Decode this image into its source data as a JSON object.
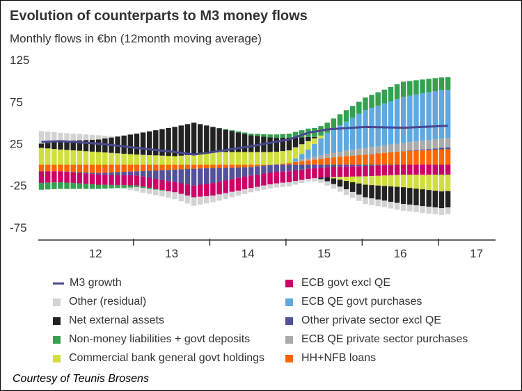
{
  "title": "Evolution of counterparts to M3 money flows",
  "subtitle": "Monthly flows in €bn (12month moving average)",
  "credit": "Courtesy of Teunis Brosens",
  "chart_data": {
    "type": "bar",
    "stacked": true,
    "ylim": [
      -90,
      130
    ],
    "yticks": [
      125,
      75,
      25,
      -25,
      -75
    ],
    "year_labels": [
      {
        "label": "12",
        "x": 2012.5
      },
      {
        "label": "13",
        "x": 2013.5
      },
      {
        "label": "14",
        "x": 2014.5
      },
      {
        "label": "15",
        "x": 2015.5
      },
      {
        "label": "16",
        "x": 2016.5
      },
      {
        "label": "17",
        "x": 2017.5
      }
    ],
    "year_boundaries": [
      2013,
      2014,
      2015,
      2016,
      2017
    ],
    "start": 2011.75,
    "months": 65,
    "anchors": [
      2011.75,
      2012.0,
      2012.5,
      2013.0,
      2013.5,
      2013.75,
      2014.0,
      2014.5,
      2015.0,
      2015.25,
      2015.5,
      2016.0,
      2016.5,
      2017.0,
      2017.4
    ],
    "series": [
      {
        "name": "HH+NFB loans",
        "color": "#ff6600",
        "values": [
          -8,
          -8,
          -10,
          -8,
          -6,
          -5,
          -4,
          -3,
          2,
          5,
          8,
          12,
          16,
          18,
          20
        ]
      },
      {
        "name": "Other private sector excl QE",
        "color": "#525199",
        "values": [
          0,
          0,
          -2,
          -5,
          -15,
          -20,
          -18,
          -10,
          -8,
          -5,
          -3,
          -2,
          0,
          2,
          3
        ]
      },
      {
        "name": "ECB QE private sector purchases",
        "color": "#aaaaaa",
        "values": [
          0,
          0,
          0,
          0,
          0,
          0,
          0,
          0,
          0,
          3,
          5,
          8,
          10,
          11,
          12
        ]
      },
      {
        "name": "ECB QE govt purchases",
        "color": "#5fa8e0",
        "values": [
          0,
          0,
          0,
          0,
          0,
          0,
          0,
          0,
          0,
          10,
          25,
          45,
          55,
          58,
          55
        ]
      },
      {
        "name": "ECB govt excl QE",
        "color": "#cc0066",
        "values": [
          -14,
          -13,
          -12,
          -12,
          -12,
          -14,
          -15,
          -15,
          -13,
          -12,
          -12,
          -12,
          -12,
          -12,
          -12
        ]
      },
      {
        "name": "Commercial bank general govt holdings",
        "color": "#d0df3e",
        "values": [
          20,
          18,
          15,
          12,
          10,
          12,
          15,
          15,
          15,
          10,
          0,
          -10,
          -15,
          -20,
          -18
        ]
      },
      {
        "name": "Net external assets",
        "color": "#222222",
        "values": [
          5,
          10,
          15,
          25,
          35,
          38,
          30,
          20,
          15,
          5,
          -5,
          -15,
          -20,
          -20,
          -18
        ]
      },
      {
        "name": "Non-money liabilities + govt deposits",
        "color": "#33a14f",
        "values": [
          -8,
          -8,
          -5,
          -2,
          0,
          0,
          0,
          2,
          5,
          10,
          12,
          15,
          18,
          15,
          15
        ]
      },
      {
        "name": "Other (residual)",
        "color": "#d3d3d3",
        "values": [
          15,
          10,
          5,
          -5,
          -8,
          -10,
          -8,
          -5,
          -5,
          -3,
          -5,
          -8,
          -8,
          -8,
          -8
        ]
      }
    ],
    "m3_growth": {
      "name": "M3 growth",
      "color": "#4a478f",
      "values": [
        27,
        28,
        25,
        20,
        15,
        12,
        15,
        22,
        30,
        38,
        42,
        45,
        44,
        46,
        47
      ]
    },
    "legend": [
      "M3 growth",
      "Other (residual)",
      "Net external assets",
      "Non-money liabilities + govt deposits",
      "Commercial bank general govt holdings",
      "ECB govt excl QE",
      "ECB QE govt purchases",
      "Other private sector excl QE",
      "ECB QE private sector purchases",
      "HH+NFB loans"
    ]
  },
  "colors": {
    "M3 growth": "#4a478f",
    "Other (residual)": "#d3d3d3",
    "Net external assets": "#222222",
    "Non-money liabilities + govt deposits": "#33a14f",
    "Commercial bank general govt holdings": "#d0df3e",
    "ECB govt excl QE": "#cc0066",
    "ECB QE govt purchases": "#5fa8e0",
    "Other private sector excl QE": "#525199",
    "ECB QE private sector purchases": "#aaaaaa",
    "HH+NFB loans": "#ff6600"
  }
}
